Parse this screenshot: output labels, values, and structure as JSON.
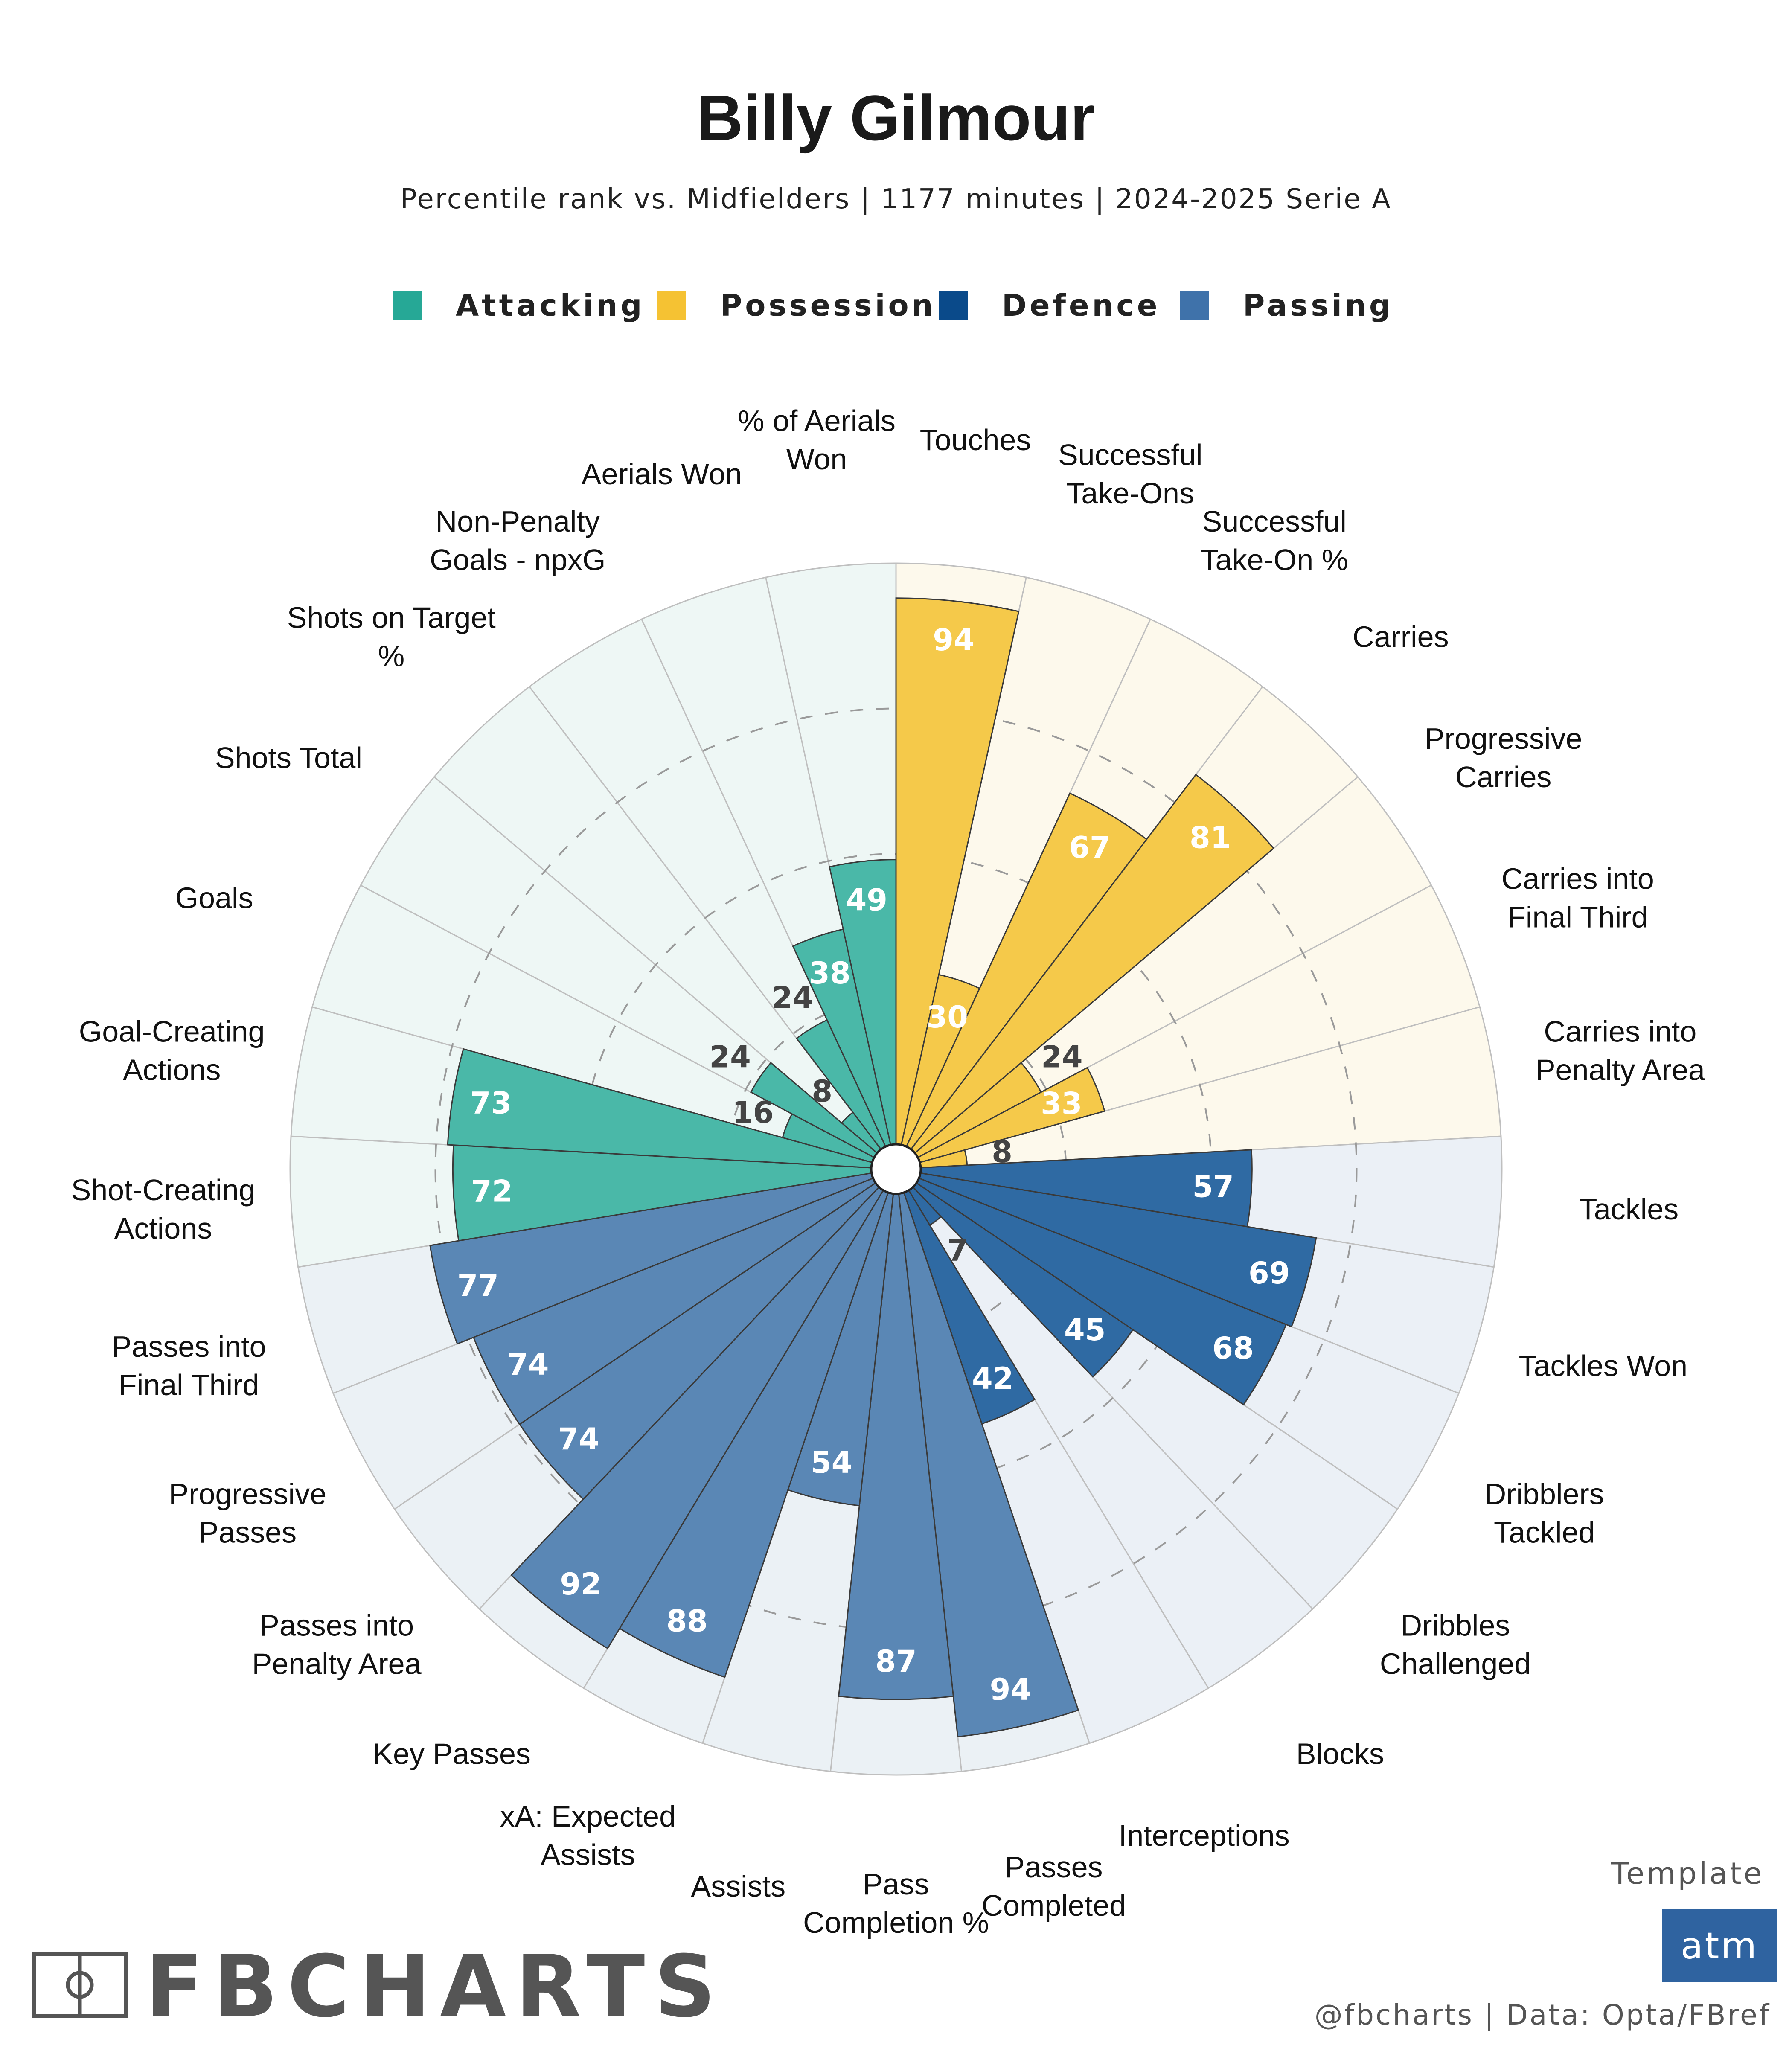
{
  "header": {
    "title": "Billy Gilmour",
    "subtitle": "Percentile rank vs. Midfielders | 1177 minutes | 2024-2025 Serie A"
  },
  "legend": [
    {
      "label": "Attacking",
      "color": "#26a896"
    },
    {
      "label": "Possession",
      "color": "#f5c233"
    },
    {
      "label": "Defence",
      "color": "#0a4a8a"
    },
    {
      "label": "Passing",
      "color": "#3f72aa"
    }
  ],
  "chart_data": {
    "type": "polar-bar",
    "range": [
      0,
      100
    ],
    "categories": [
      {
        "label": "Touches",
        "value": 94,
        "group": "Possession"
      },
      {
        "label": "Successful\nTake-Ons",
        "value": 30,
        "group": "Possession"
      },
      {
        "label": "Successful\nTake-On %",
        "value": 67,
        "group": "Possession"
      },
      {
        "label": "Carries",
        "value": 81,
        "group": "Possession"
      },
      {
        "label": "Progressive\nCarries",
        "value": 24,
        "group": "Possession"
      },
      {
        "label": "Carries into\nFinal Third",
        "value": 33,
        "group": "Possession"
      },
      {
        "label": "Carries into\nPenalty Area",
        "value": 8,
        "group": "Possession"
      },
      {
        "label": "Tackles",
        "value": 57,
        "group": "Defence"
      },
      {
        "label": "Tackles Won",
        "value": 69,
        "group": "Defence"
      },
      {
        "label": "Dribblers\nTackled",
        "value": 68,
        "group": "Defence"
      },
      {
        "label": "Dribbles\nChallenged",
        "value": 45,
        "group": "Defence"
      },
      {
        "label": "Blocks",
        "value": 7,
        "group": "Defence"
      },
      {
        "label": "Interceptions",
        "value": 42,
        "group": "Defence"
      },
      {
        "label": "Passes\nCompleted",
        "value": 94,
        "group": "Passing"
      },
      {
        "label": "Pass\nCompletion %",
        "value": 87,
        "group": "Passing"
      },
      {
        "label": "Assists",
        "value": 54,
        "group": "Passing"
      },
      {
        "label": "xA: Expected\nAssists",
        "value": 88,
        "group": "Passing"
      },
      {
        "label": "Key Passes",
        "value": 92,
        "group": "Passing"
      },
      {
        "label": "Passes into\nPenalty Area",
        "value": 74,
        "group": "Passing"
      },
      {
        "label": "Progressive\nPasses",
        "value": 74,
        "group": "Passing"
      },
      {
        "label": "Passes into\nFinal Third",
        "value": 77,
        "group": "Passing"
      },
      {
        "label": "Shot-Creating\nActions",
        "value": 72,
        "group": "Attacking"
      },
      {
        "label": "Goal-Creating\nActions",
        "value": 73,
        "group": "Attacking"
      },
      {
        "label": "Goals",
        "value": 16,
        "group": "Attacking"
      },
      {
        "label": "Shots Total",
        "value": 24,
        "group": "Attacking"
      },
      {
        "label": "Shots on Target\n%",
        "value": 8,
        "group": "Attacking"
      },
      {
        "label": "Non-Penalty\nGoals - npxG",
        "value": 24,
        "group": "Attacking"
      },
      {
        "label": "Aerials Won",
        "value": 38,
        "group": "Attacking"
      },
      {
        "label": "% of Aerials\nWon",
        "value": 49,
        "group": "Attacking"
      }
    ]
  },
  "footer": {
    "template_label": "Template",
    "template_badge": "atm",
    "credit": "@fbcharts | Data: Opta/FBref",
    "brand": "FBCHARTS"
  }
}
